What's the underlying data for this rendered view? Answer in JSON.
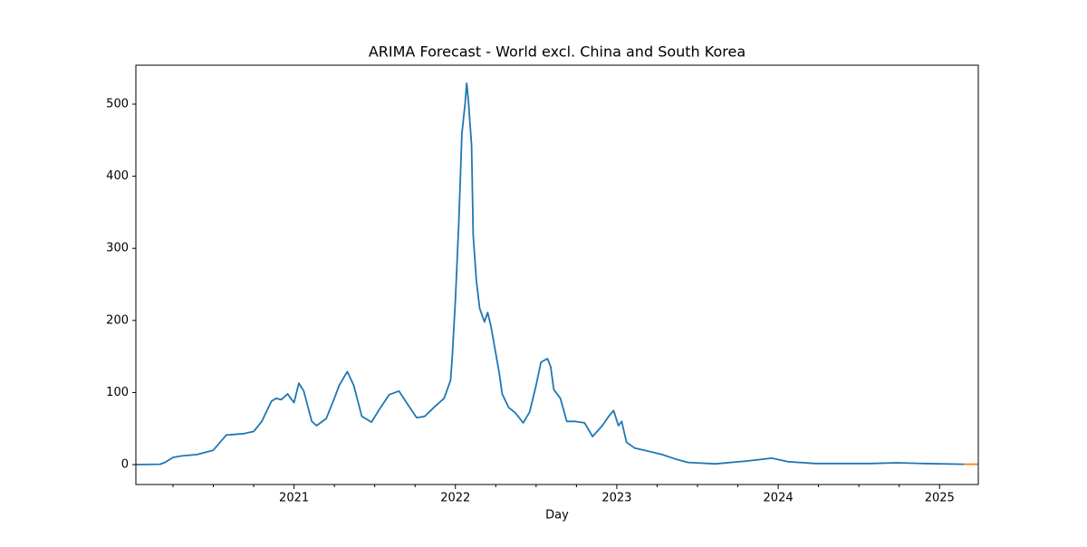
{
  "chart_data": {
    "type": "line",
    "title": "ARIMA Forecast - World excl. China and South Korea",
    "xlabel": "Day",
    "xlim": [
      2020.02,
      2025.24
    ],
    "xticks": [
      2021,
      2022,
      2023,
      2024,
      2025
    ],
    "xminorticks": [
      2020.25,
      2020.5,
      2020.75,
      2021.25,
      2021.5,
      2021.75,
      2022.25,
      2022.5,
      2022.75,
      2023.25,
      2023.5,
      2023.75,
      2024.25,
      2024.5,
      2024.75
    ],
    "ylim": [
      -27.6,
      554
    ],
    "yticks": [
      0,
      100,
      200,
      300,
      400,
      500
    ],
    "series": [
      {
        "color": "#1f77b4",
        "x": [
          2020.02,
          2020.17,
          2020.2,
          2020.25,
          2020.3,
          2020.4,
          2020.5,
          2020.58,
          2020.69,
          2020.75,
          2020.8,
          2020.86,
          2020.89,
          2020.92,
          2020.96,
          2020.98,
          2021.0,
          2021.03,
          2021.06,
          2021.11,
          2021.14,
          2021.2,
          2021.25,
          2021.28,
          2021.33,
          2021.37,
          2021.42,
          2021.48,
          2021.53,
          2021.59,
          2021.65,
          2021.7,
          2021.76,
          2021.81,
          2021.87,
          2021.93,
          2021.97,
          2021.98,
          2022.0,
          2022.02,
          2022.03,
          2022.04,
          2022.06,
          2022.07,
          2022.08,
          2022.1,
          2022.11,
          2022.13,
          2022.15,
          2022.18,
          2022.2,
          2022.22,
          2022.24,
          2022.27,
          2022.29,
          2022.33,
          2022.37,
          2022.42,
          2022.46,
          2022.5,
          2022.53,
          2022.57,
          2022.59,
          2022.61,
          2022.65,
          2022.69,
          2022.74,
          2022.8,
          2022.85,
          2022.91,
          2022.95,
          2022.98,
          2023.01,
          2023.03,
          2023.06,
          2023.11,
          2023.17,
          2023.28,
          2023.36,
          2023.44,
          2023.61,
          2023.81,
          2023.96,
          2024.06,
          2024.23,
          2024.57,
          2024.74,
          2024.9,
          2025.15
        ],
        "values": [
          0,
          0.5,
          3,
          10,
          12,
          14,
          20,
          41,
          43,
          46,
          60,
          88,
          92,
          90,
          98,
          92,
          86,
          113,
          102,
          60,
          54,
          64,
          92,
          110,
          129,
          110,
          67,
          59,
          77,
          97,
          102,
          85,
          65,
          67,
          80,
          92,
          117,
          148,
          230,
          330,
          393,
          459,
          500,
          529,
          506,
          443,
          318,
          255,
          217,
          198,
          211,
          192,
          167,
          129,
          98,
          79,
          72,
          58,
          73,
          110,
          142,
          147,
          136,
          104,
          92,
          60,
          60,
          58,
          39,
          54,
          67,
          75,
          54,
          60,
          31,
          23,
          20,
          14,
          8,
          3,
          1,
          5,
          9,
          4,
          1.5,
          1.5,
          2.5,
          1.5,
          0.5
        ]
      },
      {
        "color": "#ff7f0e",
        "x": [
          2025.15,
          2025.24
        ],
        "values": [
          0.5,
          0.5
        ]
      }
    ]
  }
}
